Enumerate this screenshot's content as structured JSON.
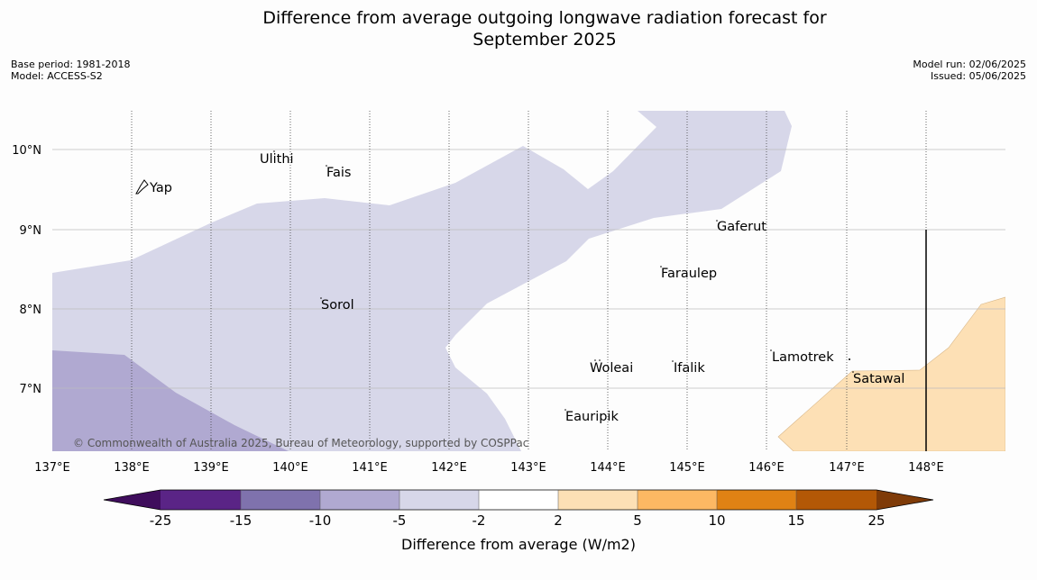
{
  "title": "Difference from average outgoing longwave radiation forecast for September 2025",
  "title_lines": [
    "Difference from average outgoing longwave radiation forecast for",
    "September 2025"
  ],
  "base_period": "Base period: 1981-2018",
  "model": "Model: ACCESS-S2",
  "model_run": "Model run: 02/06/2025",
  "issued": "Issued: 05/06/2025",
  "copyright": "© Commonwealth of Australia 2025, Bureau of Meteorology, supported by COSPPac",
  "map": {
    "lon_range": [
      137,
      149
    ],
    "lat_range": [
      6.2,
      10.5
    ],
    "lon_ticks": [
      "137°E",
      "138°E",
      "139°E",
      "140°E",
      "141°E",
      "142°E",
      "143°E",
      "144°E",
      "145°E",
      "146°E",
      "147°E",
      "148°E"
    ],
    "lat_ticks": [
      "10°N",
      "9°N",
      "8°N",
      "7°N"
    ],
    "places": [
      {
        "name": "Yap",
        "lon": 138.1,
        "lat": 9.5
      },
      {
        "name": "Ulithi",
        "lon": 139.6,
        "lat": 9.9
      },
      {
        "name": "Fais",
        "lon": 140.5,
        "lat": 9.75
      },
      {
        "name": "Gaferut",
        "lon": 145.35,
        "lat": 9.05
      },
      {
        "name": "Faraulep",
        "lon": 144.65,
        "lat": 8.45
      },
      {
        "name": "Sorol",
        "lon": 140.35,
        "lat": 8.05
      },
      {
        "name": "Lamotrek",
        "lon": 146.05,
        "lat": 7.4
      },
      {
        "name": "Woleai",
        "lon": 143.8,
        "lat": 7.25
      },
      {
        "name": "Ifalik",
        "lon": 144.75,
        "lat": 7.25
      },
      {
        "name": "Satawal",
        "lon": 147.05,
        "lat": 7.15
      },
      {
        "name": "Eauripik",
        "lon": 143.45,
        "lat": 6.65
      }
    ],
    "meridian_marker_lon": 148
  },
  "colorbar": {
    "label": "Difference from average (W/m2)",
    "ticks": [
      "-25",
      "-15",
      "-10",
      "-5",
      "-2",
      "2",
      "5",
      "10",
      "15",
      "25"
    ],
    "colors": [
      "#3f0d5c",
      "#5a2486",
      "#7f72ad",
      "#b0a9d1",
      "#d7d7e9",
      "#ffffff",
      "#fde0b5",
      "#fdb863",
      "#e08214",
      "#b35806",
      "#7f3b08"
    ]
  }
}
